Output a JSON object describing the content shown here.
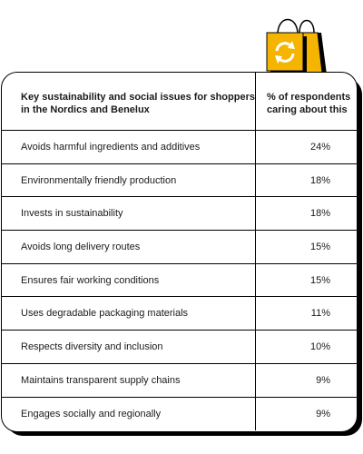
{
  "table": {
    "header": {
      "issue": "Key sustainability and social issues for shoppers in the Nordics and Benelux",
      "percent": "% of respondents caring about this"
    },
    "rows": [
      {
        "issue": "Avoids harmful ingredients and additives",
        "percent": "24%"
      },
      {
        "issue": "Environmentally friendly production",
        "percent": "18%"
      },
      {
        "issue": "Invests in sustainability",
        "percent": "18%"
      },
      {
        "issue": "Avoids long delivery routes",
        "percent": "15%"
      },
      {
        "issue": "Ensures fair working conditions",
        "percent": "15%"
      },
      {
        "issue": "Uses degradable packaging materials",
        "percent": "11%"
      },
      {
        "issue": "Respects diversity and inclusion",
        "percent": "10%"
      },
      {
        "issue": "Maintains transparent supply chains",
        "percent": "9%"
      },
      {
        "issue": "Engages socially and regionally",
        "percent": "9%"
      }
    ]
  },
  "decor": {
    "icon": "shopping-bags-recycle-icon",
    "colors": {
      "bag_front": "#f4b400",
      "bag_back": "#f4b400",
      "bag_shadow": "#000000",
      "card_border": "#000000"
    }
  }
}
